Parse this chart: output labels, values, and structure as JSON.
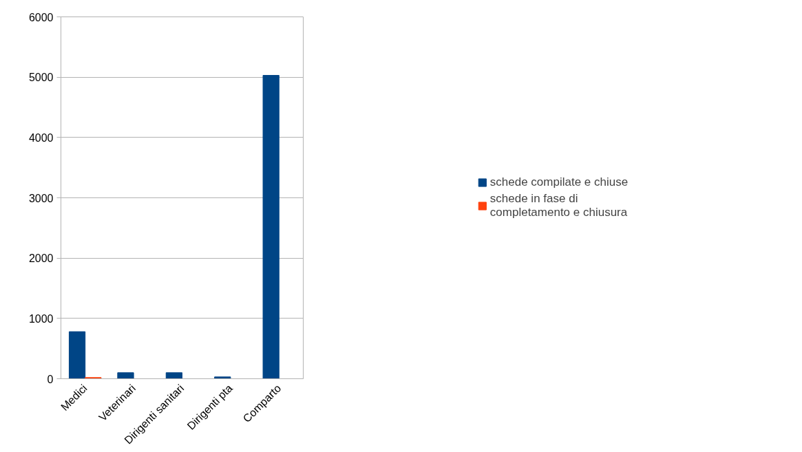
{
  "chart_data": {
    "type": "bar",
    "categories": [
      "Medici",
      "Veterinari",
      "Dirigenti sanitari",
      "Dirigenti pta",
      "Comparto"
    ],
    "series": [
      {
        "name": "schede compilate e chiuse",
        "color": "#004586",
        "values": [
          780,
          100,
          100,
          30,
          5030
        ]
      },
      {
        "name": "schede in fase di completamento e chiusura",
        "color": "#ff420e",
        "values": [
          20,
          0,
          0,
          0,
          0
        ]
      }
    ],
    "ylim": [
      0,
      6000
    ],
    "yticks": [
      0,
      1000,
      2000,
      3000,
      4000,
      5000,
      6000
    ],
    "grid": "y",
    "legend": "right"
  }
}
